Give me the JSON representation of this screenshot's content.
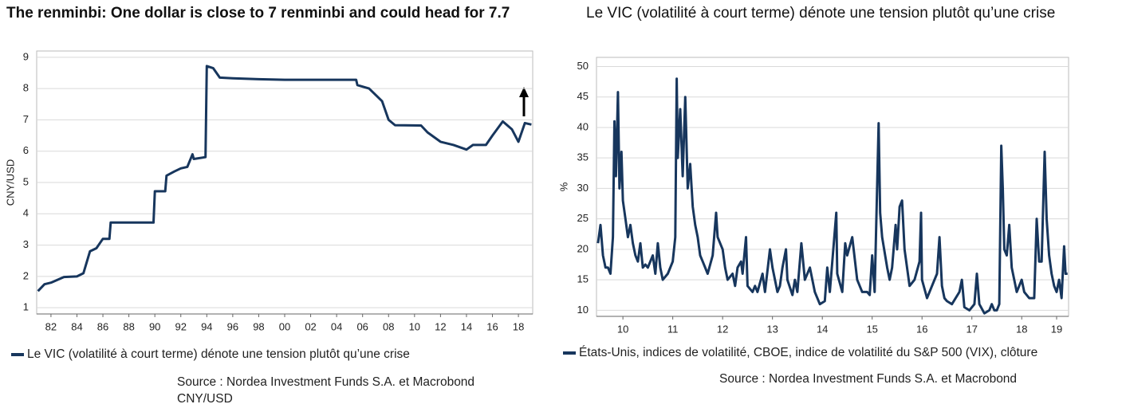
{
  "chart_data": [
    {
      "type": "line",
      "title": "The renminbi: One dollar is close to 7 renminbi and could head for 7.7",
      "ylabel": "CNY/USD",
      "source": [
        "Source : Nordea Investment Funds S.A. et Macrobond",
        "CNY/USD"
      ],
      "x": [
        1981,
        1981.5,
        1982,
        1983,
        1984,
        1984.5,
        1985,
        1985.5,
        1986,
        1986.5,
        1986.6,
        1989.9,
        1990,
        1990.8,
        1990.9,
        1991.5,
        1992,
        1992.5,
        1992.9,
        1993,
        1993.9,
        1994,
        1994.5,
        1995,
        1996,
        1998,
        2000,
        2005.5,
        2005.6,
        2006.5,
        2007.5,
        2008,
        2008.5,
        2010.5,
        2011,
        2012,
        2013,
        2014,
        2014.5,
        2015.5,
        2016,
        2016.8,
        2017.5,
        2018,
        2018.5,
        2019
      ],
      "series": [
        {
          "name": "Le VIC (volatilité à court terme) dénote  une tension  plutôt qu’une crise",
          "color": "#17365d",
          "values": [
            1.53,
            1.75,
            1.8,
            1.98,
            2.0,
            2.1,
            2.8,
            2.9,
            3.2,
            3.2,
            3.72,
            3.72,
            4.72,
            4.72,
            5.22,
            5.35,
            5.45,
            5.5,
            5.9,
            5.75,
            5.81,
            8.72,
            8.65,
            8.35,
            8.33,
            8.3,
            8.28,
            8.28,
            8.11,
            8.0,
            7.6,
            7.0,
            6.83,
            6.82,
            6.6,
            6.3,
            6.2,
            6.05,
            6.2,
            6.2,
            6.5,
            6.95,
            6.7,
            6.3,
            6.9,
            6.85
          ]
        }
      ],
      "xlim": [
        1980.9,
        2019.1
      ],
      "xticks": [
        {
          "value": 1982,
          "label": "82"
        },
        {
          "value": 1984,
          "label": "84"
        },
        {
          "value": 1986,
          "label": "86"
        },
        {
          "value": 1988,
          "label": "88"
        },
        {
          "value": 1990,
          "label": "90"
        },
        {
          "value": 1992,
          "label": "92"
        },
        {
          "value": 1994,
          "label": "94"
        },
        {
          "value": 1996,
          "label": "96"
        },
        {
          "value": 1998,
          "label": "98"
        },
        {
          "value": 2000,
          "label": "00"
        },
        {
          "value": 2002,
          "label": "02"
        },
        {
          "value": 2004,
          "label": "04"
        },
        {
          "value": 2006,
          "label": "06"
        },
        {
          "value": 2008,
          "label": "08"
        },
        {
          "value": 2010,
          "label": "10"
        },
        {
          "value": 2012,
          "label": "12"
        },
        {
          "value": 2014,
          "label": "14"
        },
        {
          "value": 2016,
          "label": "16"
        },
        {
          "value": 2018,
          "label": "18"
        }
      ],
      "ylim": [
        0.8,
        9.2
      ],
      "yticks": [
        1,
        2,
        3,
        4,
        5,
        6,
        7,
        8,
        9
      ],
      "grid": true
    },
    {
      "type": "line",
      "title": "Le VIC (volatilité à court terme) dénote une tension plutôt qu’une crise",
      "ylabel": "%",
      "source": [
        "Source : Nordea Investment Funds S.A. et  Macrobond"
      ],
      "x": [
        2010.0,
        2010.05,
        2010.1,
        2010.15,
        2010.2,
        2010.25,
        2010.3,
        2010.33,
        2010.36,
        2010.4,
        2010.43,
        2010.47,
        2010.5,
        2010.55,
        2010.6,
        2010.65,
        2010.7,
        2010.75,
        2010.8,
        2010.85,
        2010.9,
        2010.95,
        2011.0,
        2011.1,
        2011.15,
        2011.2,
        2011.25,
        2011.3,
        2011.4,
        2011.5,
        2011.55,
        2011.58,
        2011.6,
        2011.65,
        2011.7,
        2011.75,
        2011.8,
        2011.85,
        2011.9,
        2011.95,
        2012.0,
        2012.05,
        2012.1,
        2012.2,
        2012.3,
        2012.37,
        2012.4,
        2012.5,
        2012.55,
        2012.6,
        2012.7,
        2012.75,
        2012.8,
        2012.87,
        2012.9,
        2012.97,
        2013.0,
        2013.1,
        2013.15,
        2013.2,
        2013.3,
        2013.35,
        2013.45,
        2013.5,
        2013.6,
        2013.65,
        2013.7,
        2013.77,
        2013.8,
        2013.9,
        2013.95,
        2014.0,
        2014.08,
        2014.15,
        2014.25,
        2014.35,
        2014.45,
        2014.55,
        2014.6,
        2014.65,
        2014.78,
        2014.8,
        2014.9,
        2014.96,
        2015.0,
        2015.1,
        2015.2,
        2015.3,
        2015.4,
        2015.45,
        2015.5,
        2015.55,
        2015.63,
        2015.66,
        2015.7,
        2015.8,
        2015.85,
        2015.9,
        2015.97,
        2016.0,
        2016.05,
        2016.1,
        2016.15,
        2016.25,
        2016.35,
        2016.45,
        2016.48,
        2016.5,
        2016.6,
        2016.7,
        2016.8,
        2016.85,
        2016.9,
        2016.95,
        2017.0,
        2017.1,
        2017.25,
        2017.3,
        2017.35,
        2017.45,
        2017.55,
        2017.6,
        2017.65,
        2017.75,
        2017.85,
        2017.9,
        2017.95,
        2018.0,
        2018.05,
        2018.09,
        2018.12,
        2018.15,
        2018.2,
        2018.25,
        2018.3,
        2018.4,
        2018.5,
        2018.55,
        2018.65,
        2018.75,
        2018.8,
        2018.85,
        2018.9,
        2018.96,
        2019.0,
        2019.05,
        2019.1,
        2019.15,
        2019.2,
        2019.25,
        2019.3,
        2019.35,
        2019.38,
        2019.42
      ],
      "series": [
        {
          "name": "États-Unis, indices de volatilité, CBOE, indice de volatilité du S&P 500 (VIX), clôture",
          "color": "#17365d",
          "values": [
            21,
            24,
            19,
            17,
            17,
            16,
            22,
            41,
            32,
            45.8,
            30,
            36,
            28,
            25,
            22,
            24,
            21,
            19,
            18,
            21,
            17,
            17.5,
            17,
            19,
            16,
            21,
            17,
            15,
            16,
            18,
            22,
            48,
            35,
            43,
            32,
            45,
            30,
            34,
            27,
            24,
            22,
            19,
            18,
            16,
            19,
            26,
            22,
            20,
            17,
            15,
            16,
            14,
            17,
            18,
            16,
            22,
            14,
            13,
            14,
            13,
            16,
            13,
            20,
            17,
            13,
            14,
            17,
            20,
            15,
            12.5,
            15,
            13,
            21,
            15,
            17,
            13,
            11,
            11.5,
            17,
            13,
            26,
            16,
            13,
            21,
            19,
            22,
            15,
            13,
            13,
            12.5,
            19,
            13,
            40.7,
            26,
            22,
            17,
            15,
            17,
            24,
            20,
            27,
            28,
            20,
            14,
            15,
            18,
            26,
            15,
            12,
            14,
            16,
            22,
            14,
            12,
            11.5,
            11,
            13,
            15,
            10.5,
            10,
            11,
            16,
            11,
            9.5,
            10,
            11,
            10,
            10,
            11,
            37,
            30,
            20,
            19,
            24,
            17,
            13,
            15,
            13,
            12,
            12,
            25,
            18,
            18,
            36,
            25,
            19,
            16,
            14,
            13,
            15,
            12,
            20.5,
            16,
            16
          ]
        }
      ],
      "xlim": [
        2009.97,
        2019.44
      ],
      "xticks": [
        {
          "value": 2010.5,
          "label": "10"
        },
        {
          "value": 2011.5,
          "label": "11"
        },
        {
          "value": 2012.5,
          "label": "12"
        },
        {
          "value": 2013.5,
          "label": "13"
        },
        {
          "value": 2014.5,
          "label": "14"
        },
        {
          "value": 2015.5,
          "label": "15"
        },
        {
          "value": 2016.5,
          "label": "16"
        },
        {
          "value": 2017.5,
          "label": "17"
        },
        {
          "value": 2018.5,
          "label": "18"
        },
        {
          "value": 2019.2,
          "label": "19"
        }
      ],
      "ylim": [
        9,
        51.5
      ],
      "yticks": [
        10,
        15,
        20,
        25,
        30,
        35,
        40,
        45,
        50
      ],
      "grid": true
    }
  ]
}
